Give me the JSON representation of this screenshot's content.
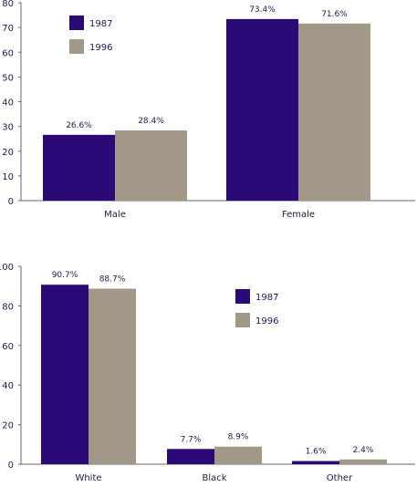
{
  "colors": {
    "s1987": "#2b0a78",
    "s1996": "#a39787",
    "axis": "#666666",
    "text": "#1f1a4d"
  },
  "chart_data": [
    {
      "type": "bar",
      "categories": [
        "Male",
        "Female"
      ],
      "series": [
        {
          "name": "1987",
          "values": [
            26.6,
            73.4
          ],
          "labels": [
            "26.6%",
            "73.4%"
          ]
        },
        {
          "name": "1996",
          "values": [
            28.4,
            71.6
          ],
          "labels": [
            "28.4%",
            "71.6%"
          ]
        }
      ],
      "ylim": [
        0,
        80
      ],
      "yticks": [
        "0",
        "10",
        "20",
        "30",
        "40",
        "50",
        "60",
        "70",
        "80"
      ],
      "legend": "top-left",
      "grid": false
    },
    {
      "type": "bar",
      "categories": [
        "White",
        "Black",
        "Other"
      ],
      "series": [
        {
          "name": "1987",
          "values": [
            90.7,
            7.7,
            1.6
          ],
          "labels": [
            "90.7%",
            "7.7%",
            "1.6%"
          ]
        },
        {
          "name": "1996",
          "values": [
            88.7,
            8.9,
            2.4
          ],
          "labels": [
            "88.7%",
            "8.9%",
            "2.4%"
          ]
        }
      ],
      "ylim": [
        0,
        100
      ],
      "yticks": [
        "0",
        "20",
        "40",
        "60",
        "80",
        "100"
      ],
      "legend": "top-right",
      "grid": false
    }
  ]
}
